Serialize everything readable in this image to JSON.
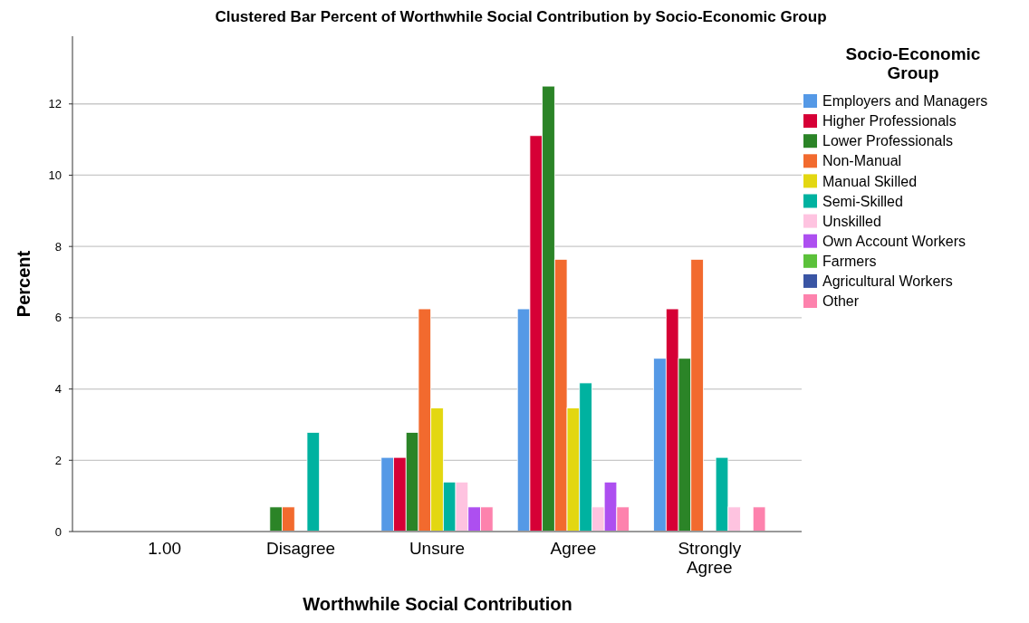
{
  "chart_data": {
    "type": "bar",
    "title": "Clustered Bar Percent of Worthwhile Social Contribution by Socio-Economic Group",
    "xlabel": "Worthwhile Social Contribution",
    "ylabel": "Percent",
    "legend_title": "Socio-Economic Group",
    "categories": [
      "1.00",
      "Disagree",
      "Unsure",
      "Agree",
      "Strongly Agree"
    ],
    "series": [
      {
        "name": "Employers and Managers",
        "color": "#5599e6",
        "values": [
          null,
          null,
          2.08,
          6.25,
          4.86
        ]
      },
      {
        "name": "Higher Professionals",
        "color": "#d60036",
        "values": [
          null,
          null,
          2.08,
          11.11,
          6.25
        ]
      },
      {
        "name": "Lower Professionals",
        "color": "#2b8427",
        "values": [
          null,
          0.69,
          2.78,
          12.5,
          4.86
        ]
      },
      {
        "name": "Non-Manual",
        "color": "#f26a2e",
        "values": [
          null,
          0.69,
          6.25,
          7.64,
          7.64
        ]
      },
      {
        "name": "Manual Skilled",
        "color": "#e3d711",
        "values": [
          null,
          null,
          3.47,
          3.47,
          null
        ]
      },
      {
        "name": "Semi-Skilled",
        "color": "#00b2a0",
        "values": [
          null,
          2.78,
          1.39,
          4.17,
          2.08
        ]
      },
      {
        "name": "Unskilled",
        "color": "#fec3e0",
        "values": [
          null,
          null,
          1.39,
          0.69,
          0.69
        ]
      },
      {
        "name": "Own Account Workers",
        "color": "#ad4ff0",
        "values": [
          null,
          null,
          0.69,
          1.39,
          null
        ]
      },
      {
        "name": "Farmers",
        "color": "#5bc13a",
        "values": [
          null,
          null,
          null,
          null,
          null
        ]
      },
      {
        "name": "Agricultural Workers",
        "color": "#3a55a4",
        "values": [
          null,
          null,
          null,
          null,
          null
        ]
      },
      {
        "name": "Other",
        "color": "#fd82ad",
        "values": [
          null,
          null,
          0.69,
          0.69,
          0.69
        ]
      }
    ],
    "ylim": [
      0,
      13.9
    ],
    "yticks": [
      0,
      2,
      4,
      6,
      8,
      10,
      12
    ],
    "grid": "y",
    "legend": "right"
  }
}
